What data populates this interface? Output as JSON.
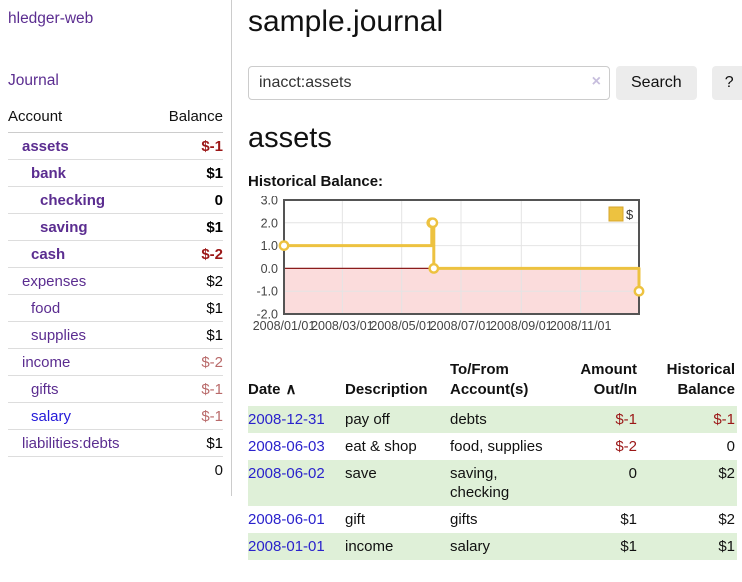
{
  "sidebar": {
    "app_title": "hledger-web",
    "journal_link": "Journal",
    "accounts": {
      "account_header": "Account",
      "balance_header": "Balance",
      "rows": [
        {
          "name": "assets",
          "balance": "$-1",
          "indent": 1,
          "bold": true,
          "visited": true
        },
        {
          "name": "bank",
          "balance": "$1",
          "indent": 2,
          "bold": true,
          "visited": true
        },
        {
          "name": "checking",
          "balance": "0",
          "indent": 3,
          "bold": true,
          "visited": true
        },
        {
          "name": "saving",
          "balance": "$1",
          "indent": 3,
          "bold": true,
          "visited": true
        },
        {
          "name": "cash",
          "balance": "$-2",
          "indent": 2,
          "bold": true,
          "visited": true
        },
        {
          "name": "expenses",
          "balance": "$2",
          "indent": 1,
          "bold": false,
          "visited": true
        },
        {
          "name": "food",
          "balance": "$1",
          "indent": 2,
          "bold": false,
          "visited": true
        },
        {
          "name": "supplies",
          "balance": "$1",
          "indent": 2,
          "bold": false,
          "visited": true
        },
        {
          "name": "income",
          "balance": "$-2",
          "indent": 1,
          "bold": false,
          "visited": true
        },
        {
          "name": "gifts",
          "balance": "$-1",
          "indent": 2,
          "bold": false,
          "visited": true
        },
        {
          "name": "salary",
          "balance": "$-1",
          "indent": 2,
          "bold": false,
          "visited": false
        },
        {
          "name": "liabilities:debts",
          "balance": "$1",
          "indent": 1,
          "bold": false,
          "visited": true
        }
      ],
      "total": "0"
    }
  },
  "main": {
    "title": "sample.journal",
    "search": {
      "value": "inacct:assets",
      "clear_icon": "×",
      "button_label": "Search",
      "help_label": "?"
    },
    "account_heading": "assets"
  },
  "chart_data": {
    "type": "line",
    "style": "step",
    "title": "Historical Balance:",
    "x_range": [
      "2008/01/01",
      "2008/12/31"
    ],
    "ylim": [
      -2,
      3
    ],
    "y_ticks": [
      "3.0",
      "2.0",
      "1.0",
      "0.0",
      "-1.0",
      "-2.0"
    ],
    "x_ticks": [
      "2008/01/01",
      "2008/03/01",
      "2008/05/01",
      "2008/07/01",
      "2008/09/01",
      "2008/11/01"
    ],
    "series": [
      {
        "name": "$",
        "color": "#edc240",
        "points": [
          [
            "2008/01/01",
            1
          ],
          [
            "2008/06/01",
            2
          ],
          [
            "2008/06/02",
            2
          ],
          [
            "2008/06/03",
            0
          ],
          [
            "2008/12/31",
            -1
          ]
        ]
      }
    ],
    "grid": true,
    "legend_position": "top-right",
    "negative_region_color": "#fbdcdc",
    "zero_line_color": "#8b1c1c",
    "border_color": "#545454"
  },
  "table": {
    "headers": [
      "Date",
      "Description",
      "To/From\nAccount(s)",
      "Amount\nOut/In",
      "Historical\nBalance"
    ],
    "sort_icon": "∧",
    "rows": [
      {
        "date": "2008-12-31",
        "description": "pay off",
        "accounts": "debts",
        "amount": "$-1",
        "balance": "$-1"
      },
      {
        "date": "2008-06-03",
        "description": "eat & shop",
        "accounts": "food, supplies",
        "amount": "$-2",
        "balance": "0"
      },
      {
        "date": "2008-06-02",
        "description": "save",
        "accounts": "saving,\nchecking",
        "amount": "0",
        "balance": "$2"
      },
      {
        "date": "2008-06-01",
        "description": "gift",
        "accounts": "gifts",
        "amount": "$1",
        "balance": "$2"
      },
      {
        "date": "2008-01-01",
        "description": "income",
        "accounts": "salary",
        "amount": "$1",
        "balance": "$1"
      }
    ]
  },
  "colors": {
    "accent_purple": "#5b2d90",
    "link_blue": "#2a22cc",
    "negative_strong": "#9b1717",
    "negative_muted": "#b96a6a",
    "row_green": "#dff0d8",
    "chart_yellow": "#edc240"
  }
}
